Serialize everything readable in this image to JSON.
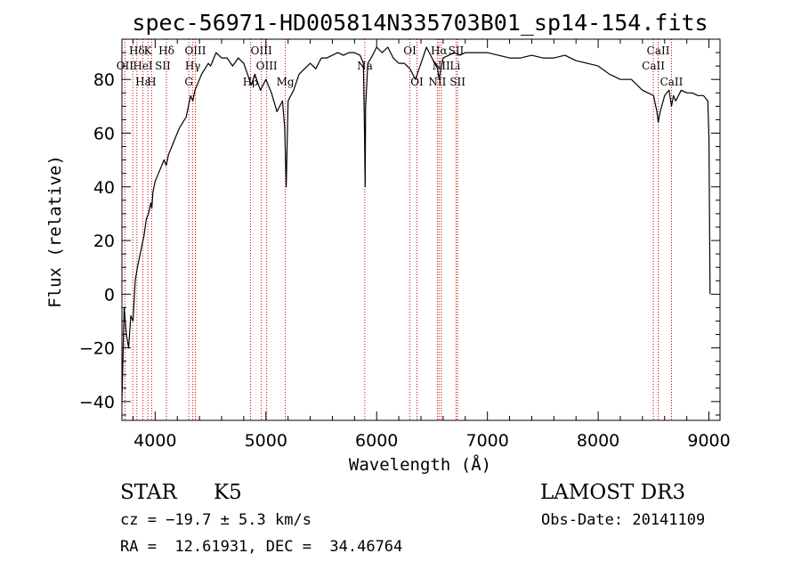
{
  "chart_data": {
    "type": "line",
    "title": "spec-56971-HD005814N335703B01_sp14-154.fits",
    "xlabel": "Wavelength (Å)",
    "ylabel": "Flux (relative)",
    "xlim": [
      3700,
      9100
    ],
    "ylim": [
      -47,
      95
    ],
    "xticks": [
      4000,
      5000,
      6000,
      7000,
      8000,
      9000
    ],
    "yticks": [
      -40,
      -20,
      0,
      20,
      40,
      60,
      80
    ],
    "grid": false,
    "series": [
      {
        "color": "#000000",
        "x": [
          3700,
          3720,
          3740,
          3760,
          3780,
          3800,
          3820,
          3840,
          3860,
          3880,
          3900,
          3920,
          3940,
          3960,
          3970,
          3980,
          4000,
          4020,
          4040,
          4060,
          4080,
          4100,
          4120,
          4150,
          4180,
          4200,
          4220,
          4250,
          4280,
          4300,
          4320,
          4340,
          4360,
          4380,
          4400,
          4420,
          4450,
          4480,
          4500,
          4550,
          4600,
          4650,
          4700,
          4750,
          4800,
          4850,
          4870,
          4900,
          4950,
          5000,
          5050,
          5100,
          5150,
          5170,
          5183,
          5200,
          5250,
          5300,
          5350,
          5400,
          5450,
          5500,
          5550,
          5600,
          5650,
          5700,
          5750,
          5800,
          5850,
          5880,
          5890,
          5896,
          5900,
          5920,
          5950,
          6000,
          6050,
          6100,
          6150,
          6200,
          6250,
          6300,
          6350,
          6400,
          6450,
          6500,
          6550,
          6563,
          6600,
          6650,
          6700,
          6750,
          6800,
          6900,
          7000,
          7100,
          7200,
          7300,
          7400,
          7500,
          7600,
          7700,
          7800,
          7900,
          8000,
          8100,
          8200,
          8300,
          8400,
          8450,
          8500,
          8530,
          8542,
          8560,
          8600,
          8640,
          8662,
          8680,
          8700,
          8750,
          8800,
          8850,
          8900,
          8950,
          8990,
          9000,
          9010
        ],
        "y": [
          -40,
          -5,
          -15,
          -20,
          -8,
          -10,
          5,
          10,
          14,
          18,
          22,
          28,
          30,
          34,
          32,
          38,
          42,
          44,
          46,
          48,
          50,
          48,
          52,
          55,
          58,
          60,
          62,
          64,
          66,
          70,
          74,
          72,
          76,
          78,
          80,
          82,
          84,
          86,
          85,
          90,
          88,
          88,
          85,
          88,
          86,
          80,
          78,
          82,
          76,
          80,
          75,
          68,
          72,
          62,
          40,
          72,
          76,
          82,
          84,
          86,
          84,
          88,
          88,
          89,
          90,
          89,
          90,
          90,
          89,
          86,
          62,
          40,
          70,
          86,
          88,
          92,
          90,
          92,
          88,
          86,
          86,
          84,
          80,
          86,
          92,
          88,
          84,
          80,
          88,
          89,
          90,
          89,
          90,
          90,
          90,
          89,
          88,
          88,
          89,
          88,
          88,
          89,
          87,
          86,
          85,
          82,
          80,
          80,
          76,
          75,
          74,
          68,
          64,
          68,
          74,
          76,
          70,
          74,
          72,
          76,
          75,
          75,
          74,
          74,
          72,
          58,
          0
        ]
      }
    ],
    "line_markers": [
      {
        "label": "Hδ",
        "x": 3835,
        "row": 0
      },
      {
        "label": "K",
        "x": 3934,
        "row": 0
      },
      {
        "label": "Hδ",
        "x": 4102,
        "row": 0
      },
      {
        "label": "OIII",
        "x": 4363,
        "row": 0
      },
      {
        "label": "OIII",
        "x": 4959,
        "row": 0
      },
      {
        "label": "OI",
        "x": 6300,
        "row": 0
      },
      {
        "label": "Hα",
        "x": 6563,
        "row": 0
      },
      {
        "label": "SII",
        "x": 6717,
        "row": 0
      },
      {
        "label": "CaII",
        "x": 8542,
        "row": 0
      },
      {
        "label": "OII",
        "x": 3727,
        "row": 1
      },
      {
        "label": "HeI",
        "x": 3889,
        "row": 1
      },
      {
        "label": "SII",
        "x": 4069,
        "row": 1
      },
      {
        "label": "Hγ",
        "x": 4340,
        "row": 1
      },
      {
        "label": "OIII",
        "x": 5007,
        "row": 1
      },
      {
        "label": "Na",
        "x": 5893,
        "row": 1
      },
      {
        "label": "NII",
        "x": 6583,
        "row": 1
      },
      {
        "label": "Li",
        "x": 6708,
        "row": 1
      },
      {
        "label": "CaII",
        "x": 8498,
        "row": 1
      },
      {
        "label": "Hε",
        "x": 3889,
        "row": 2
      },
      {
        "label": "H",
        "x": 3968,
        "row": 2
      },
      {
        "label": "G",
        "x": 4304,
        "row": 2
      },
      {
        "label": "Hβ",
        "x": 4861,
        "row": 2
      },
      {
        "label": "Mg",
        "x": 5175,
        "row": 2
      },
      {
        "label": "OI",
        "x": 6364,
        "row": 2
      },
      {
        "label": "NII",
        "x": 6548,
        "row": 2
      },
      {
        "label": "SII",
        "x": 6731,
        "row": 2
      },
      {
        "label": "CaII",
        "x": 8662,
        "row": 2
      }
    ],
    "marker_lines_x": [
      3727,
      3798,
      3835,
      3889,
      3934,
      3968,
      4102,
      4304,
      4340,
      4363,
      4861,
      4959,
      5007,
      5175,
      5893,
      6300,
      6364,
      6548,
      6563,
      6583,
      6717,
      6731,
      8498,
      8542,
      8662
    ],
    "marker_color": "#cc0000"
  },
  "info": {
    "class_label": "STAR",
    "subclass": "K5",
    "survey": "LAMOST DR3",
    "cz": "cz = −19.7 ± 5.3 km/s",
    "obs_date": "Obs-Date: 20141109",
    "coords": "RA =  12.61931, DEC =  34.46764"
  }
}
